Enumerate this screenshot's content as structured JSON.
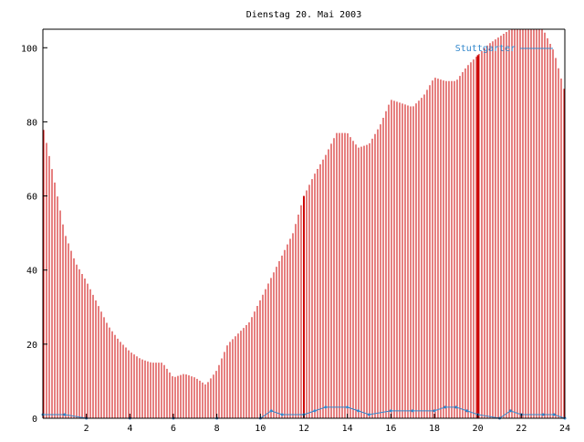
{
  "chart_data": {
    "type": "bar",
    "title": "Dienstag 20. Mai 2003",
    "xlabel": "",
    "ylabel": "",
    "xlim": [
      0,
      24
    ],
    "ylim": [
      0,
      105
    ],
    "grid": false,
    "legend_position": "top-right",
    "x_ticks": [
      2,
      4,
      6,
      8,
      10,
      12,
      14,
      16,
      18,
      20,
      22,
      24
    ],
    "x_tick_labels": [
      "2",
      "4",
      "6",
      "8",
      "10",
      "12",
      "14",
      "16",
      "18",
      "20",
      "22",
      "24"
    ],
    "y_ticks": [
      0,
      20,
      40,
      60,
      80,
      100
    ],
    "y_tick_labels": [
      "0",
      "20",
      "40",
      "60",
      "80",
      "100"
    ],
    "series": [
      {
        "name": "",
        "color": "#cc0000",
        "style": "bars",
        "points": [
          [
            0.0,
            79
          ],
          [
            0.5,
            65
          ],
          [
            1.0,
            50
          ],
          [
            1.5,
            42
          ],
          [
            2.0,
            37
          ],
          [
            2.5,
            31
          ],
          [
            3.0,
            25
          ],
          [
            3.5,
            21
          ],
          [
            4.0,
            18
          ],
          [
            4.5,
            16
          ],
          [
            5.0,
            15
          ],
          [
            5.5,
            15
          ],
          [
            6.0,
            11
          ],
          [
            6.5,
            12
          ],
          [
            7.0,
            11
          ],
          [
            7.5,
            9
          ],
          [
            8.0,
            13
          ],
          [
            8.5,
            20
          ],
          [
            9.0,
            23
          ],
          [
            9.5,
            26
          ],
          [
            10.0,
            32
          ],
          [
            10.5,
            38
          ],
          [
            11.0,
            44
          ],
          [
            11.5,
            50
          ],
          [
            12.0,
            60
          ],
          [
            12.5,
            66
          ],
          [
            13.0,
            71
          ],
          [
            13.5,
            77
          ],
          [
            14.0,
            77
          ],
          [
            14.5,
            73
          ],
          [
            15.0,
            74
          ],
          [
            15.5,
            79
          ],
          [
            16.0,
            86
          ],
          [
            16.5,
            85
          ],
          [
            17.0,
            84
          ],
          [
            17.5,
            87
          ],
          [
            18.0,
            92
          ],
          [
            18.5,
            91
          ],
          [
            19.0,
            91
          ],
          [
            19.5,
            95
          ],
          [
            20.0,
            98
          ],
          [
            20.5,
            101
          ],
          [
            21.0,
            103
          ],
          [
            21.5,
            105
          ],
          [
            22.0,
            105
          ],
          [
            22.5,
            105
          ],
          [
            23.0,
            105
          ],
          [
            23.5,
            99
          ],
          [
            24.0,
            88
          ]
        ]
      },
      {
        "name": "Stuttgarter",
        "color": "#3388cc",
        "style": "line",
        "points": [
          [
            0.0,
            1
          ],
          [
            1.0,
            1
          ],
          [
            2.0,
            0
          ],
          [
            4.0,
            0
          ],
          [
            6.0,
            0
          ],
          [
            8.0,
            0
          ],
          [
            10.0,
            0
          ],
          [
            10.5,
            2
          ],
          [
            11.0,
            1
          ],
          [
            12.0,
            1
          ],
          [
            12.5,
            2
          ],
          [
            13.0,
            3
          ],
          [
            14.0,
            3
          ],
          [
            14.5,
            2
          ],
          [
            15.0,
            1
          ],
          [
            16.0,
            2
          ],
          [
            17.0,
            2
          ],
          [
            18.0,
            2
          ],
          [
            18.5,
            3
          ],
          [
            19.0,
            3
          ],
          [
            19.5,
            2
          ],
          [
            20.0,
            1
          ],
          [
            21.0,
            0
          ],
          [
            21.5,
            2
          ],
          [
            22.0,
            1
          ],
          [
            23.0,
            1
          ],
          [
            23.5,
            1
          ],
          [
            24.0,
            0
          ]
        ]
      }
    ]
  }
}
